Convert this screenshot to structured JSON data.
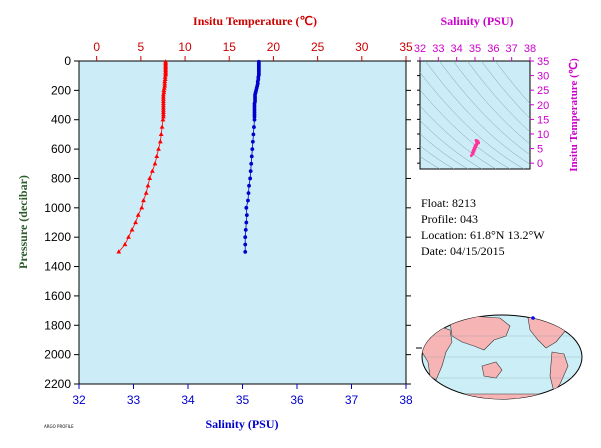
{
  "chart_data": [
    {
      "type": "scatter",
      "name_hint": "profile",
      "y_label": "Pressure (decibar)",
      "y_range": [
        0,
        2200
      ],
      "y_ticks": [
        0,
        200,
        400,
        600,
        800,
        1000,
        1200,
        1400,
        1600,
        1800,
        2000,
        2200
      ],
      "y_inverted": true,
      "top_axis": {
        "label": "Insitu Temperature (℃)",
        "range": [
          -2,
          35
        ],
        "ticks": [
          0,
          5,
          10,
          15,
          20,
          25,
          30,
          35
        ],
        "color": "#ff0000"
      },
      "bottom_axis": {
        "label": "Salinity (PSU)",
        "range": [
          32,
          38
        ],
        "ticks": [
          32,
          33,
          34,
          35,
          36,
          37,
          38
        ],
        "color": "#0000cd"
      },
      "background": "#ccedf7",
      "series": [
        {
          "axis": "top",
          "marker": "triangle",
          "color": "#ff0000",
          "points": [
            [
              7.8,
              5
            ],
            [
              7.8,
              15
            ],
            [
              7.8,
              25
            ],
            [
              7.8,
              35
            ],
            [
              7.8,
              45
            ],
            [
              7.8,
              55
            ],
            [
              7.8,
              65
            ],
            [
              7.8,
              75
            ],
            [
              7.8,
              85
            ],
            [
              7.8,
              95
            ],
            [
              7.75,
              110
            ],
            [
              7.75,
              125
            ],
            [
              7.7,
              140
            ],
            [
              7.7,
              155
            ],
            [
              7.7,
              170
            ],
            [
              7.65,
              185
            ],
            [
              7.6,
              200
            ],
            [
              7.6,
              215
            ],
            [
              7.55,
              230
            ],
            [
              7.55,
              245
            ],
            [
              7.55,
              260
            ],
            [
              7.55,
              275
            ],
            [
              7.55,
              290
            ],
            [
              7.55,
              305
            ],
            [
              7.55,
              320
            ],
            [
              7.55,
              335
            ],
            [
              7.55,
              350
            ],
            [
              7.55,
              365
            ],
            [
              7.55,
              380
            ],
            [
              7.5,
              400
            ],
            [
              7.4,
              450
            ],
            [
              7.3,
              500
            ],
            [
              7.2,
              550
            ],
            [
              7.0,
              600
            ],
            [
              6.8,
              650
            ],
            [
              6.6,
              700
            ],
            [
              6.3,
              750
            ],
            [
              6.0,
              800
            ],
            [
              5.8,
              850
            ],
            [
              5.6,
              900
            ],
            [
              5.3,
              950
            ],
            [
              5.1,
              1000
            ],
            [
              4.7,
              1050
            ],
            [
              4.4,
              1100
            ],
            [
              4.0,
              1150
            ],
            [
              3.6,
              1200
            ],
            [
              3.2,
              1250
            ],
            [
              2.5,
              1300
            ]
          ]
        },
        {
          "axis": "bottom",
          "marker": "circle",
          "color": "#0000cd",
          "points": [
            [
              35.3,
              5
            ],
            [
              35.3,
              15
            ],
            [
              35.3,
              25
            ],
            [
              35.3,
              35
            ],
            [
              35.3,
              45
            ],
            [
              35.3,
              55
            ],
            [
              35.3,
              65
            ],
            [
              35.3,
              75
            ],
            [
              35.3,
              85
            ],
            [
              35.3,
              95
            ],
            [
              35.29,
              110
            ],
            [
              35.29,
              125
            ],
            [
              35.28,
              140
            ],
            [
              35.28,
              155
            ],
            [
              35.27,
              170
            ],
            [
              35.26,
              185
            ],
            [
              35.25,
              200
            ],
            [
              35.24,
              215
            ],
            [
              35.23,
              230
            ],
            [
              35.23,
              245
            ],
            [
              35.23,
              260
            ],
            [
              35.23,
              275
            ],
            [
              35.22,
              290
            ],
            [
              35.22,
              305
            ],
            [
              35.22,
              320
            ],
            [
              35.22,
              335
            ],
            [
              35.22,
              350
            ],
            [
              35.22,
              365
            ],
            [
              35.22,
              380
            ],
            [
              35.22,
              400
            ],
            [
              35.21,
              450
            ],
            [
              35.2,
              500
            ],
            [
              35.19,
              550
            ],
            [
              35.18,
              600
            ],
            [
              35.17,
              650
            ],
            [
              35.16,
              700
            ],
            [
              35.15,
              750
            ],
            [
              35.14,
              800
            ],
            [
              35.12,
              850
            ],
            [
              35.11,
              900
            ],
            [
              35.1,
              950
            ],
            [
              35.07,
              1000
            ],
            [
              35.08,
              1050
            ],
            [
              35.07,
              1100
            ],
            [
              35.06,
              1150
            ],
            [
              35.05,
              1200
            ],
            [
              35.05,
              1250
            ],
            [
              35.05,
              1300
            ]
          ]
        }
      ]
    },
    {
      "type": "scatter",
      "name_hint": "ts_diagram",
      "x_label": "Salinity (PSU)",
      "x_range": [
        32,
        38
      ],
      "x_ticks": [
        32,
        33,
        34,
        35,
        36,
        37,
        38
      ],
      "y_label": "Insitu Temperature (℃)",
      "y_range": [
        -2,
        35
      ],
      "y_ticks": [
        0,
        5,
        10,
        15,
        20,
        25,
        30,
        35
      ],
      "color": "#cc00cc",
      "background": "#ccedf7",
      "series": [
        {
          "color": "#ff3399",
          "points": [
            [
              35.05,
              7.8
            ],
            [
              35.1,
              7.6
            ],
            [
              35.08,
              7.4
            ],
            [
              35.12,
              7.2
            ],
            [
              35.15,
              7.0
            ],
            [
              35.1,
              6.8
            ],
            [
              35.07,
              6.5
            ],
            [
              35.0,
              6.0
            ],
            [
              35.05,
              5.6
            ],
            [
              34.95,
              5.2
            ],
            [
              35.0,
              4.8
            ],
            [
              34.9,
              4.4
            ],
            [
              34.95,
              4.0
            ],
            [
              34.85,
              3.6
            ],
            [
              34.9,
              3.2
            ],
            [
              34.8,
              2.6
            ],
            [
              35.12,
              7.7
            ],
            [
              35.15,
              7.5
            ],
            [
              35.18,
              7.3
            ],
            [
              35.2,
              6.9
            ],
            [
              35.1,
              6.3
            ],
            [
              35.02,
              5.4
            ]
          ]
        }
      ]
    }
  ],
  "info": {
    "float": "Float:  8213",
    "profile": "Profile:  043",
    "location": "Location:  61.8°N  13.2°W",
    "date": "Date:  04/15/2015"
  },
  "footer_tiny": "ARGO PROFILE"
}
